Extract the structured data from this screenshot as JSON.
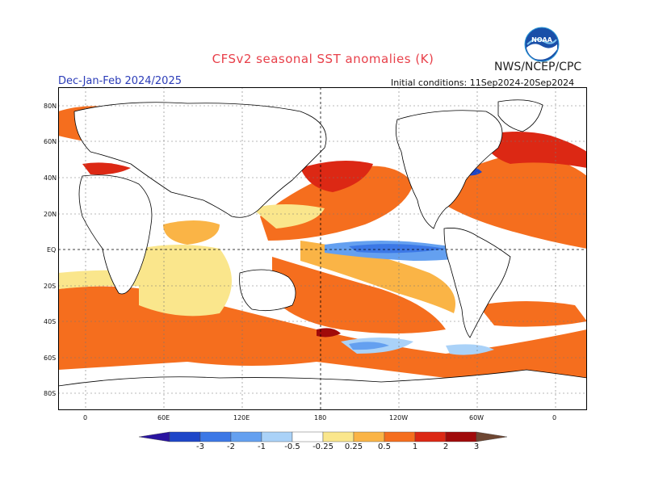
{
  "title": "CFSv2 seasonal SST anomalies (K)",
  "agency": "NWS/NCEP/CPC",
  "logo_text": "NOAA",
  "season": "Dec-Jan-Feb 2024/2025",
  "initial_conditions": "Initial conditions: 11Sep2024-20Sep2024",
  "lat_labels": [
    "80N",
    "60N",
    "40N",
    "20N",
    "EQ",
    "20S",
    "40S",
    "60S",
    "80S"
  ],
  "lon_labels": [
    "0",
    "60E",
    "120E",
    "180",
    "120W",
    "60W",
    "0"
  ],
  "colorbar": {
    "ticks": [
      "-3",
      "-2",
      "-1",
      "-0.5",
      "-0.25",
      "0.25",
      "0.5",
      "1",
      "2",
      "3"
    ],
    "colors": [
      "#2a14a0",
      "#1e46c8",
      "#3c78e6",
      "#64a0f0",
      "#aad2f8",
      "#ffffff",
      "#fae68c",
      "#fab446",
      "#f56e1e",
      "#dc2814",
      "#a00a0a",
      "#6e4632"
    ]
  },
  "colors": {
    "ocean_neutral": "#ffffff",
    "land": "#ffffff",
    "coast": "#000000",
    "grid": "#777777"
  }
}
